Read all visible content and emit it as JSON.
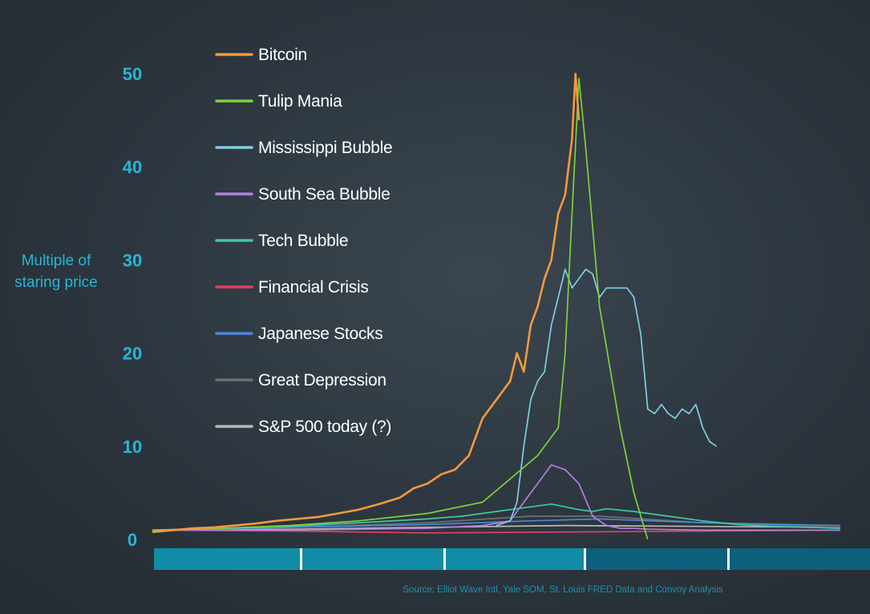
{
  "chart_data": {
    "type": "line",
    "title": "",
    "xlabel": "",
    "ylabel": [
      "Multiple of",
      "staring price"
    ],
    "ylim": [
      0,
      50
    ],
    "yticks": [
      0,
      10,
      20,
      30,
      40,
      50
    ],
    "grid": false,
    "legend_position": "top-left",
    "source": "Source: Elliot Wave Intl, Yale SOM, St. Louis FRED Data and Convoy Analysis",
    "series": [
      {
        "name": "Bitcoin",
        "color": "#f39a3e",
        "x": [
          0,
          3,
          6,
          9,
          12,
          15,
          18,
          21,
          24,
          27,
          30,
          33,
          36,
          38,
          40,
          42,
          44,
          46,
          48,
          50,
          52,
          53,
          54,
          55,
          56,
          57,
          58,
          59,
          60,
          60.5,
          61,
          61.5,
          62
        ],
        "y": [
          0.8,
          1.0,
          1.2,
          1.3,
          1.5,
          1.7,
          2.0,
          2.2,
          2.4,
          2.8,
          3.2,
          3.8,
          4.5,
          5.5,
          6.0,
          7.0,
          7.5,
          9.0,
          13.0,
          15.0,
          17.0,
          20.0,
          18.0,
          23.0,
          25.0,
          28.0,
          30.0,
          35.0,
          37.0,
          40.0,
          43.0,
          50.0,
          45.0
        ]
      },
      {
        "name": "Tulip Mania",
        "color": "#7fd03e",
        "x": [
          0,
          10,
          20,
          30,
          40,
          48,
          52,
          56,
          59,
          60,
          61,
          62,
          63,
          65,
          68,
          70,
          72
        ],
        "y": [
          1.0,
          1.2,
          1.5,
          2.0,
          2.8,
          4.0,
          6.5,
          9.0,
          12.0,
          20.0,
          35.0,
          49.5,
          42.0,
          25.0,
          12.0,
          5.0,
          0.0
        ]
      },
      {
        "name": "Mississippi Bubble",
        "color": "#7fcde3",
        "x": [
          50,
          52,
          53,
          54,
          55,
          56,
          57,
          58,
          59,
          60,
          61,
          62,
          63,
          64,
          65,
          66,
          67,
          68,
          69,
          70,
          71,
          72,
          73,
          74,
          75,
          76,
          77,
          78,
          79,
          80,
          81,
          82
        ],
        "y": [
          1.5,
          2.0,
          4.0,
          10.0,
          15.0,
          17.0,
          18.0,
          23.0,
          26.0,
          29.0,
          27.0,
          28.0,
          29.0,
          28.5,
          26.0,
          27.0,
          27.0,
          27.0,
          27.0,
          26.0,
          22.0,
          14.0,
          13.5,
          14.5,
          13.5,
          13.0,
          14.0,
          13.5,
          14.5,
          12.0,
          10.5,
          10.0
        ]
      },
      {
        "name": "South Sea Bubble",
        "color": "#b27fe0",
        "x": [
          0,
          20,
          40,
          48,
          52,
          54,
          56,
          58,
          60,
          62,
          64,
          66,
          68,
          70,
          72,
          80,
          90,
          100
        ],
        "y": [
          1.0,
          1.0,
          1.2,
          1.5,
          2.0,
          4.0,
          6.0,
          8.0,
          7.5,
          6.0,
          2.5,
          1.5,
          1.2,
          1.2,
          1.1,
          1.0,
          1.0,
          1.0
        ]
      },
      {
        "name": "Tech Bubble",
        "color": "#3ec9a5",
        "x": [
          0,
          10,
          20,
          30,
          40,
          45,
          50,
          55,
          58,
          60,
          62,
          64,
          66,
          70,
          75,
          80,
          85,
          90,
          95,
          100
        ],
        "y": [
          1.0,
          1.2,
          1.4,
          1.8,
          2.2,
          2.5,
          3.0,
          3.5,
          3.8,
          3.5,
          3.2,
          3.0,
          3.3,
          3.0,
          2.5,
          2.0,
          1.6,
          1.4,
          1.3,
          1.2
        ]
      },
      {
        "name": "Financial Crisis",
        "color": "#e2405e",
        "x": [
          0,
          20,
          40,
          60,
          80,
          100
        ],
        "y": [
          1.0,
          0.9,
          0.7,
          0.8,
          0.9,
          1.0
        ]
      },
      {
        "name": "Japanese Stocks",
        "color": "#4f86d6",
        "x": [
          0,
          20,
          40,
          55,
          65,
          80,
          100
        ],
        "y": [
          1.0,
          1.3,
          1.6,
          2.0,
          2.2,
          1.8,
          1.5
        ]
      },
      {
        "name": "Great Depression",
        "color": "#6e6e6e",
        "x": [
          0,
          20,
          40,
          55,
          65,
          80,
          100
        ],
        "y": [
          1.0,
          1.3,
          1.8,
          2.5,
          2.5,
          1.8,
          1.3
        ]
      },
      {
        "name": "S&P 500 today (?)",
        "color": "#b8b8b8",
        "x": [
          0,
          20,
          40,
          60,
          80,
          100
        ],
        "y": [
          1.0,
          1.1,
          1.3,
          1.5,
          1.4,
          1.3
        ]
      }
    ]
  }
}
